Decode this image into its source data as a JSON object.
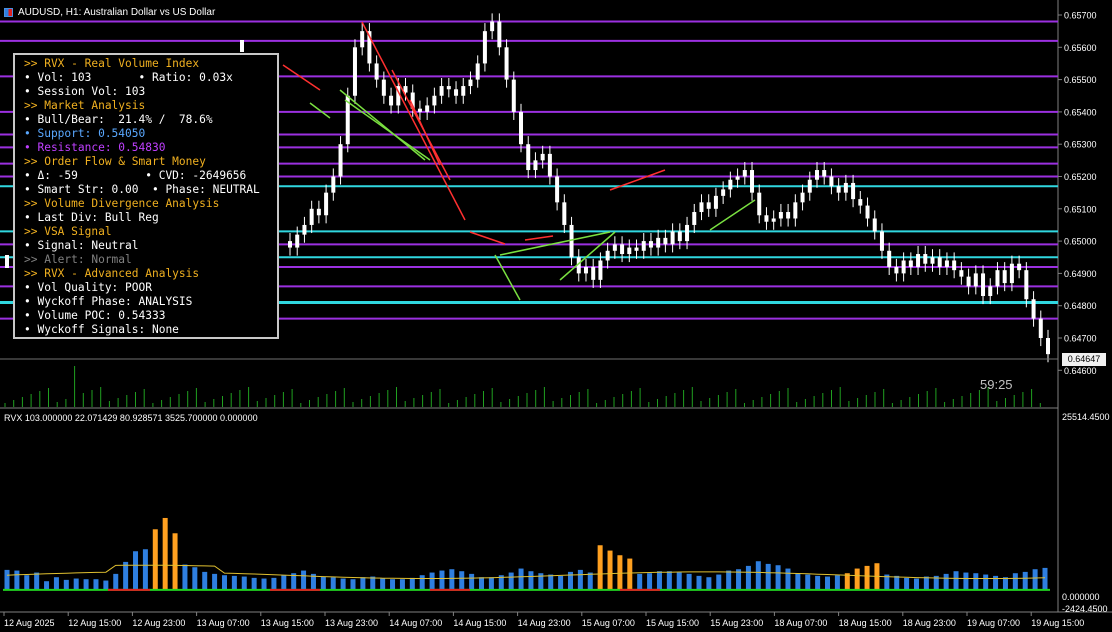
{
  "window": {
    "symbol_title": "AUDUSD, H1:  Australian Dollar vs US Dollar"
  },
  "info_panel": [
    {
      "text": ">> RVX - Real Volume Index",
      "color": "#f0b020"
    },
    {
      "text": "• Vol: 103       • Ratio: 0.03x",
      "color": "#ffffff"
    },
    {
      "text": "• Session Vol: 103",
      "color": "#ffffff"
    },
    {
      "text": ">> Market Analysis",
      "color": "#f0b020"
    },
    {
      "text": "• Bull/Bear:  21.4% /  78.6%",
      "color": "#ffffff"
    },
    {
      "text": "• Support: 0.54050",
      "color": "#5aa8ff"
    },
    {
      "text": "• Resistance: 0.54830",
      "color": "#c040ff"
    },
    {
      "text": ">> Order Flow & Smart Money",
      "color": "#f0b020"
    },
    {
      "text": "• Δ: -59          • CVD: -2649656",
      "color": "#ffffff"
    },
    {
      "text": "• Smart Str: 0.00  • Phase: NEUTRAL",
      "color": "#ffffff"
    },
    {
      "text": ">> Volume Divergence Analysis",
      "color": "#f0b020"
    },
    {
      "text": "• Last Div: Bull Reg",
      "color": "#ffffff"
    },
    {
      "text": ">> VSA Signal",
      "color": "#f0b020"
    },
    {
      "text": "• Signal: Neutral",
      "color": "#ffffff"
    },
    {
      "text": ">> Alert: Normal",
      "color": "#808080"
    },
    {
      "text": ">> RVX - Advanced Analysis",
      "color": "#f0b020"
    },
    {
      "text": "• Vol Quality: POOR",
      "color": "#ffffff"
    },
    {
      "text": "• Wyckoff Phase: ANALYSIS",
      "color": "#ffffff"
    },
    {
      "text": "• Volume POC: 0.54333",
      "color": "#ffffff"
    },
    {
      "text": "• Wyckoff Signals: None",
      "color": "#ffffff"
    }
  ],
  "price_axis": {
    "labels": [
      "0.65700",
      "0.65600",
      "0.65500",
      "0.65400",
      "0.65300",
      "0.65200",
      "0.65100",
      "0.65000",
      "0.64900",
      "0.64800",
      "0.64700",
      "0.64600"
    ],
    "current_price": "0.64647"
  },
  "timer_text": "59:25",
  "indicator": {
    "label": "RVX 103.000000 22.071429 80.928571 3525.700000 0.000000",
    "axis_top": "25514.4500",
    "axis_zero": "0.000000",
    "axis_bottom": "-2424.4500"
  },
  "time_axis": [
    "12 Aug 2025",
    "12 Aug 15:00",
    "12 Aug 23:00",
    "13 Aug 07:00",
    "13 Aug 15:00",
    "13 Aug 23:00",
    "14 Aug 07:00",
    "14 Aug 15:00",
    "14 Aug 23:00",
    "15 Aug 07:00",
    "15 Aug 15:00",
    "15 Aug 23:00",
    "18 Aug 07:00",
    "18 Aug 15:00",
    "18 Aug 23:00",
    "19 Aug 07:00",
    "19 Aug 15:00"
  ],
  "colors": {
    "background": "#000000",
    "bull_candle": "#ffffff",
    "bear_candle": "#ffffff",
    "level_purple": "#9b30e0",
    "level_cyan": "#30d8e0",
    "volume_blue": "#2f7fe0",
    "volume_orange": "#ffa020",
    "ma_line": "#e0c030",
    "zero_green": "#20d020",
    "zero_red": "#e02020"
  },
  "icons": [
    "chart-window-icon"
  ],
  "chart_data": {
    "type": "candlestick",
    "symbol": "AUDUSD",
    "timeframe": "H1",
    "price_range": [
      0.6455,
      0.6575
    ],
    "close_series": [
      0.6498,
      0.6502,
      0.6505,
      0.651,
      0.6508,
      0.6515,
      0.652,
      0.653,
      0.6545,
      0.656,
      0.6565,
      0.6555,
      0.655,
      0.6545,
      0.6542,
      0.6548,
      0.6546,
      0.6541,
      0.654,
      0.6542,
      0.6545,
      0.6548,
      0.6547,
      0.6545,
      0.6548,
      0.655,
      0.6555,
      0.6565,
      0.6568,
      0.656,
      0.655,
      0.654,
      0.653,
      0.6522,
      0.6525,
      0.6527,
      0.652,
      0.6512,
      0.6505,
      0.6495,
      0.649,
      0.6492,
      0.6488,
      0.6494,
      0.6497,
      0.6499,
      0.6496,
      0.6498,
      0.6497,
      0.65,
      0.6498,
      0.6501,
      0.6499,
      0.6503,
      0.65,
      0.6505,
      0.6509,
      0.6512,
      0.651,
      0.6514,
      0.6516,
      0.6519,
      0.652,
      0.6522,
      0.6515,
      0.6508,
      0.6506,
      0.6507,
      0.6509,
      0.6507,
      0.6512,
      0.6515,
      0.6519,
      0.6522,
      0.652,
      0.6517,
      0.6515,
      0.6518,
      0.6513,
      0.6511,
      0.6507,
      0.6503,
      0.6497,
      0.6492,
      0.649,
      0.6494,
      0.6492,
      0.6496,
      0.6493,
      0.6495,
      0.6492,
      0.6494,
      0.6491,
      0.6489,
      0.6486,
      0.649,
      0.6483,
      0.6486,
      0.6491,
      0.6487,
      0.6493,
      0.6491,
      0.6482,
      0.6476,
      0.647,
      0.6465
    ],
    "levels_purple": [
      0.6568,
      0.6562,
      0.6551,
      0.654,
      0.6533,
      0.6529,
      0.6524,
      0.652,
      0.6499,
      0.6492,
      0.6486,
      0.6476
    ],
    "levels_cyan": [
      0.6517,
      0.6503,
      0.6495,
      0.6481
    ],
    "volume": {
      "values": [
        3000,
        2900,
        2200,
        2600,
        1300,
        1900,
        1500,
        1700,
        1600,
        1600,
        1400,
        2400,
        4200,
        5800,
        6100,
        5200,
        4600,
        4100,
        3800,
        3400,
        2700,
        2400,
        2200,
        2100,
        2000,
        1800,
        1700,
        1800,
        2200,
        2500,
        2900,
        2400,
        2000,
        1900,
        1700,
        1600,
        1900,
        2000,
        1700,
        1600,
        1600,
        1800,
        2200,
        2600,
        2900,
        3100,
        2800,
        2400,
        1900,
        1900,
        2200,
        2600,
        3200,
        2800,
        2500,
        2300,
        2100,
        2700,
        3000,
        2600,
        2300,
        2100,
        2000,
        2200,
        2400,
        2500,
        2800,
        2800,
        2600,
        2400,
        2100,
        1900,
        2300,
        2900,
        3100,
        3600,
        4300,
        3900,
        3700,
        3200,
        2500,
        2300,
        2100,
        2000,
        2200,
        2600,
        2900,
        2800,
        2500,
        2300,
        2100,
        1800,
        1700,
        2000,
        2100,
        2400,
        2800,
        2600,
        2500,
        2300,
        2100,
        1900,
        2500,
        2700,
        3100,
        3300
      ],
      "highlight_indices": [
        15,
        16,
        17,
        60,
        61,
        62,
        63,
        85,
        86,
        87,
        88
      ],
      "highlight_values": [
        9100,
        10800,
        8500,
        6700,
        5900,
        5200,
        4700,
        2500,
        3200,
        3600,
        4000
      ],
      "ma_level": 2200,
      "range": [
        -2424.45,
        25514.45
      ]
    }
  }
}
